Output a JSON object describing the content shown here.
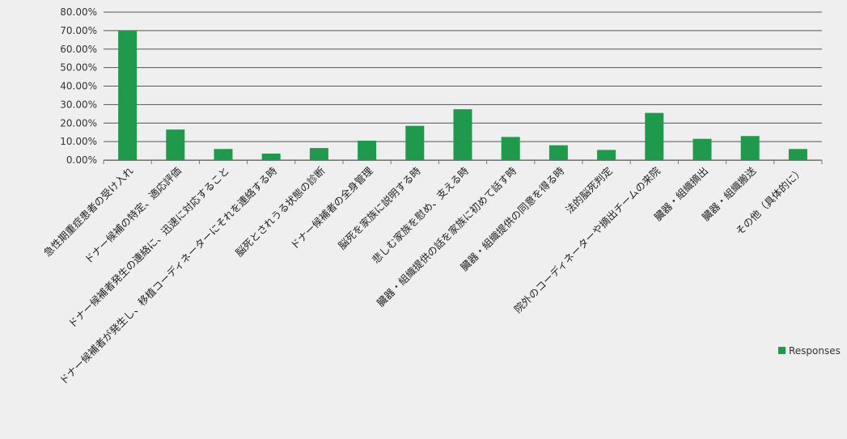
{
  "chart_data": {
    "type": "bar",
    "categories": [
      "急性期重症患者の受け入れ",
      "ドナー候補の特定、適応評価",
      "ドナー候補者発生の連絡に、迅速に対応すること",
      "ドナー候補者が発生し、移植コーディネーターにそれを連絡する時",
      "脳死とされうる状態の診断",
      "ドナー候補者の全身管理",
      "脳死を家族に説明する時",
      "悲しむ家族を慰め、支える時",
      "臓器・組織提供の話を家族に初めて話す時",
      "臓器・組織提供の同意を得る時",
      "法的脳死判定",
      "院外のコーディネーターや摘出チームの来院",
      "臓器・組織摘出",
      "臓器・組織搬送",
      "その他（具体的に）"
    ],
    "series": [
      {
        "name": "Responses",
        "values": [
          70.0,
          16.5,
          6.0,
          3.5,
          6.5,
          10.5,
          18.5,
          27.5,
          12.5,
          8.0,
          5.5,
          25.5,
          11.5,
          13.0,
          6.0
        ]
      }
    ],
    "ylim": [
      0,
      80
    ],
    "yticks": [
      "0.00%",
      "10.00%",
      "20.00%",
      "30.00%",
      "40.00%",
      "50.00%",
      "60.00%",
      "70.00%",
      "80.00%"
    ],
    "y_unit": "percent",
    "grid": true,
    "legend_position": "right",
    "colors": {
      "bar": "#1f9a4c",
      "grid": "#555555",
      "axis": "#777777",
      "background": "#efeff0"
    }
  }
}
